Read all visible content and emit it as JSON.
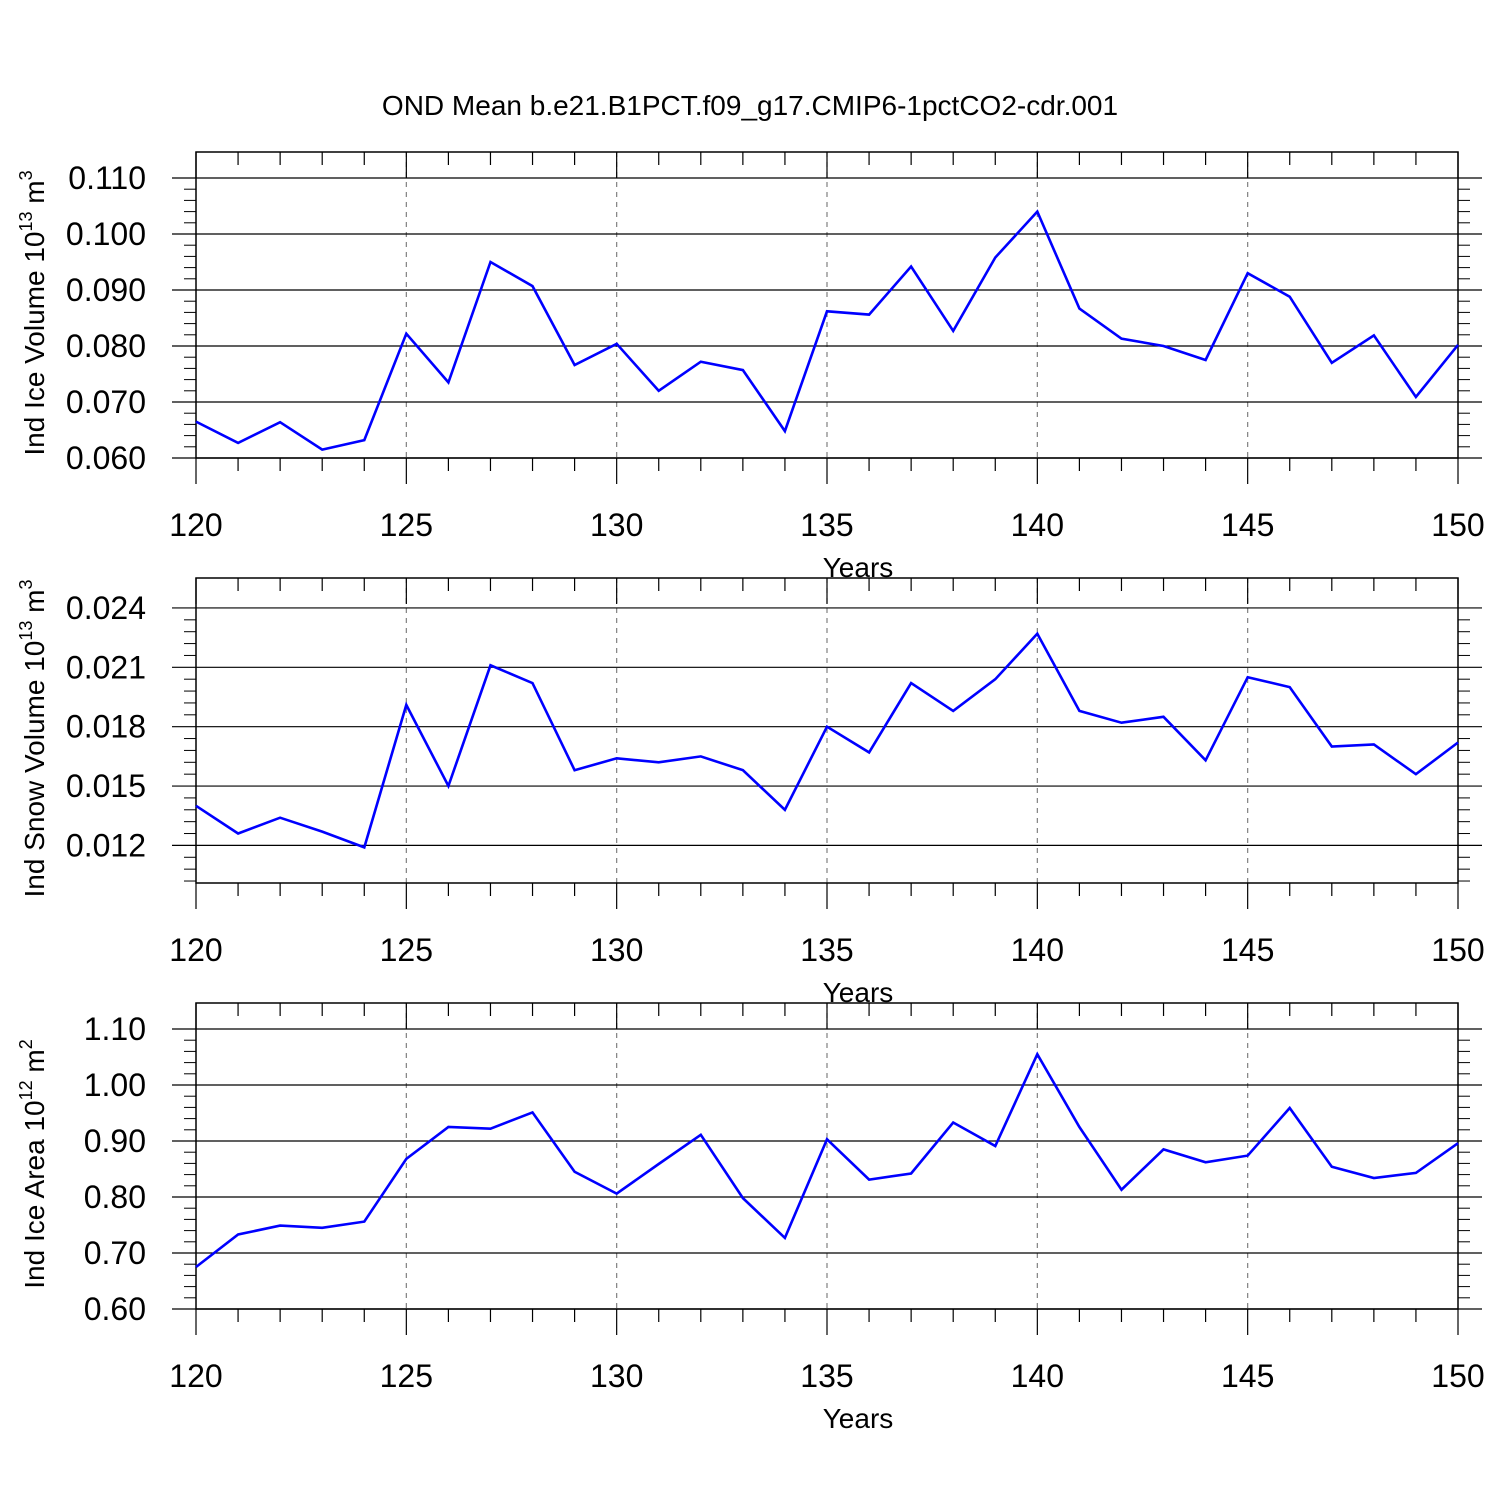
{
  "title": "OND Mean b.e21.B1PCT.f09_g17.CMIP6-1pctCO2-cdr.001",
  "colors": {
    "line": "#0000ff",
    "frame": "#000000",
    "grid": "#808080",
    "background": "#ffffff"
  },
  "chart_data": [
    {
      "type": "line",
      "xlabel": "Years",
      "ylabel": {
        "text": "Ind Ice Volume 10",
        "exponent": "13",
        "unit": " m",
        "unit_exponent": "3"
      },
      "xlim": [
        120,
        150
      ],
      "ylim": [
        0.06,
        0.11
      ],
      "xticks": [
        120,
        125,
        130,
        135,
        140,
        145,
        150
      ],
      "xtick_labels": [
        "120",
        "125",
        "130",
        "135",
        "140",
        "145",
        "150"
      ],
      "yticks": [
        0.06,
        0.07,
        0.08,
        0.09,
        0.1,
        0.11
      ],
      "ytick_labels": [
        "0.060",
        "0.070",
        "0.080",
        "0.090",
        "0.100",
        "0.110"
      ],
      "grid": "vertical dashed at major x ticks",
      "x": [
        120,
        121,
        122,
        123,
        124,
        125,
        126,
        127,
        128,
        129,
        130,
        131,
        132,
        133,
        134,
        135,
        136,
        137,
        138,
        139,
        140,
        141,
        142,
        143,
        144,
        145,
        146,
        147,
        148,
        149,
        150
      ],
      "values": [
        0.0665,
        0.0627,
        0.0664,
        0.0615,
        0.0632,
        0.0822,
        0.0735,
        0.095,
        0.0907,
        0.0766,
        0.0804,
        0.072,
        0.0772,
        0.0757,
        0.0648,
        0.0862,
        0.0856,
        0.0942,
        0.0827,
        0.0958,
        0.104,
        0.0867,
        0.0813,
        0.08,
        0.0775,
        0.093,
        0.0888,
        0.077,
        0.0819,
        0.0709,
        0.0802
      ]
    },
    {
      "type": "line",
      "xlabel": "Years",
      "ylabel": {
        "text": "Ind Snow Volume 10",
        "exponent": "13",
        "unit": " m",
        "unit_exponent": "3"
      },
      "xlim": [
        120,
        150
      ],
      "ylim": [
        0.0101,
        0.0242
      ],
      "xticks": [
        120,
        125,
        130,
        135,
        140,
        145,
        150
      ],
      "xtick_labels": [
        "120",
        "125",
        "130",
        "135",
        "140",
        "145",
        "150"
      ],
      "yticks": [
        0.012,
        0.015,
        0.018,
        0.021,
        0.024
      ],
      "ytick_labels": [
        "0.012",
        "0.015",
        "0.018",
        "0.021",
        "0.024"
      ],
      "grid": "vertical dashed at major x ticks",
      "x": [
        120,
        121,
        122,
        123,
        124,
        125,
        126,
        127,
        128,
        129,
        130,
        131,
        132,
        133,
        134,
        135,
        136,
        137,
        138,
        139,
        140,
        141,
        142,
        143,
        144,
        145,
        146,
        147,
        148,
        149,
        150
      ],
      "values": [
        0.014,
        0.0126,
        0.0134,
        0.0127,
        0.0119,
        0.0191,
        0.015,
        0.0211,
        0.0202,
        0.0158,
        0.0164,
        0.0162,
        0.0165,
        0.0158,
        0.0138,
        0.018,
        0.0167,
        0.0202,
        0.0188,
        0.0204,
        0.0227,
        0.0188,
        0.0182,
        0.0185,
        0.0163,
        0.0205,
        0.02,
        0.017,
        0.0171,
        0.0156,
        0.0172
      ]
    },
    {
      "type": "line",
      "xlabel": "Years",
      "ylabel": {
        "text": "Ind Ice Area 10",
        "exponent": "12",
        "unit": " m",
        "unit_exponent": "2"
      },
      "xlim": [
        120,
        150
      ],
      "ylim": [
        0.6,
        1.1
      ],
      "xticks": [
        120,
        125,
        130,
        135,
        140,
        145,
        150
      ],
      "xtick_labels": [
        "120",
        "125",
        "130",
        "135",
        "140",
        "145",
        "150"
      ],
      "yticks": [
        0.6,
        0.7,
        0.8,
        0.9,
        1.0,
        1.1
      ],
      "ytick_labels": [
        "0.60",
        "0.70",
        "0.80",
        "0.90",
        "1.00",
        "1.10"
      ],
      "grid": "vertical dashed at major x ticks",
      "x": [
        120,
        121,
        122,
        123,
        124,
        125,
        126,
        127,
        128,
        129,
        130,
        131,
        132,
        133,
        134,
        135,
        136,
        137,
        138,
        139,
        140,
        141,
        142,
        143,
        144,
        145,
        146,
        147,
        148,
        149,
        150
      ],
      "values": [
        0.675,
        0.733,
        0.749,
        0.745,
        0.756,
        0.868,
        0.925,
        0.922,
        0.951,
        0.845,
        0.806,
        0.859,
        0.911,
        0.798,
        0.727,
        0.903,
        0.831,
        0.842,
        0.933,
        0.891,
        1.055,
        0.925,
        0.813,
        0.885,
        0.862,
        0.874,
        0.959,
        0.854,
        0.834,
        0.843,
        0.896
      ]
    }
  ]
}
